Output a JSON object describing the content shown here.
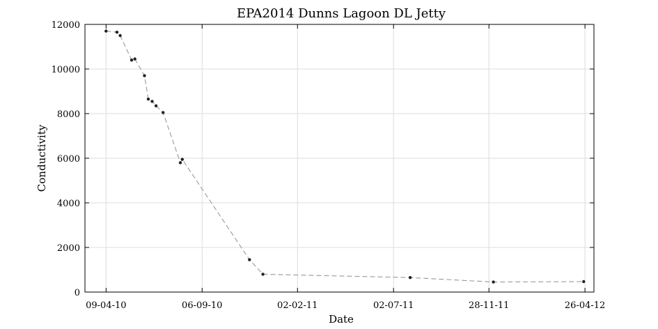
{
  "chart_data": {
    "type": "line",
    "title": "EPA2014 Dunns Lagoon DL Jetty",
    "xlabel": "Date",
    "ylabel": "Conductivity",
    "x_axis": {
      "range": [
        "2010-04-09",
        "2012-04-26"
      ],
      "ticks": [
        {
          "date": "2010-04-09",
          "label": "09-04-10"
        },
        {
          "date": "2010-09-06",
          "label": "06-09-10"
        },
        {
          "date": "2011-02-02",
          "label": "02-02-11"
        },
        {
          "date": "2011-07-02",
          "label": "02-07-11"
        },
        {
          "date": "2011-11-28",
          "label": "28-11-11"
        },
        {
          "date": "2012-04-26",
          "label": "26-04-12"
        }
      ]
    },
    "y_axis": {
      "range": [
        0,
        12000
      ],
      "ticks": [
        0,
        2000,
        4000,
        6000,
        8000,
        10000,
        12000
      ],
      "tick_labels": [
        "0",
        "2000",
        "4000",
        "6000",
        "8000",
        "10000",
        "12000"
      ]
    },
    "grid": true,
    "line_style": "dashed",
    "line_color": "#999999",
    "marker_color": "#222222",
    "series": [
      {
        "x": [
          "2010-04-09",
          "2010-04-26",
          "2010-05-01",
          "2010-05-19",
          "2010-05-24",
          "2010-06-08",
          "2010-06-14",
          "2010-06-20",
          "2010-06-26",
          "2010-07-07",
          "2010-08-03",
          "2010-08-06",
          "2010-11-19",
          "2010-12-10",
          "2011-07-28",
          "2011-12-05",
          "2012-04-24"
        ],
        "y": [
          11700,
          11650,
          11500,
          10400,
          10450,
          9700,
          8650,
          8550,
          8350,
          8050,
          5800,
          5950,
          1450,
          800,
          650,
          450,
          470
        ]
      }
    ]
  }
}
